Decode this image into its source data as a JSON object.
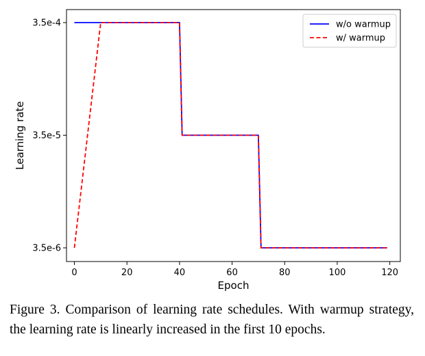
{
  "chart_data": {
    "type": "line",
    "title": "",
    "xlabel": "Epoch",
    "ylabel": "Learning rate",
    "xlim": [
      -3,
      124
    ],
    "x_ticks": [
      0,
      20,
      40,
      60,
      80,
      100,
      120
    ],
    "x_tick_labels": [
      "0",
      "20",
      "40",
      "60",
      "80",
      "100",
      "120"
    ],
    "y_ticks": [
      0.00035,
      3.5e-05,
      3.5e-06
    ],
    "y_tick_labels": [
      "3.5e-4",
      "3.5e-5",
      "3.5e-6"
    ],
    "legend_position": "top-right",
    "grid": false,
    "series": [
      {
        "name": "w/o warmup",
        "color": "#0000ff",
        "style": "solid",
        "points": [
          [
            0,
            0.00035
          ],
          [
            40,
            0.00035
          ],
          [
            41,
            3.5e-05
          ],
          [
            70,
            3.5e-05
          ],
          [
            71,
            3.5e-06
          ],
          [
            119,
            3.5e-06
          ]
        ]
      },
      {
        "name": "w/ warmup",
        "color": "#ff0000",
        "style": "dashed",
        "points": [
          [
            0,
            3.5e-06
          ],
          [
            10,
            0.00035
          ],
          [
            40,
            0.00035
          ],
          [
            41,
            3.5e-05
          ],
          [
            70,
            3.5e-05
          ],
          [
            71,
            3.5e-06
          ],
          [
            119,
            3.5e-06
          ]
        ]
      }
    ]
  },
  "caption": "Figure 3. Comparison of learning rate schedules. With warmup strategy, the learning rate is linearly increased in the first 10 epochs."
}
